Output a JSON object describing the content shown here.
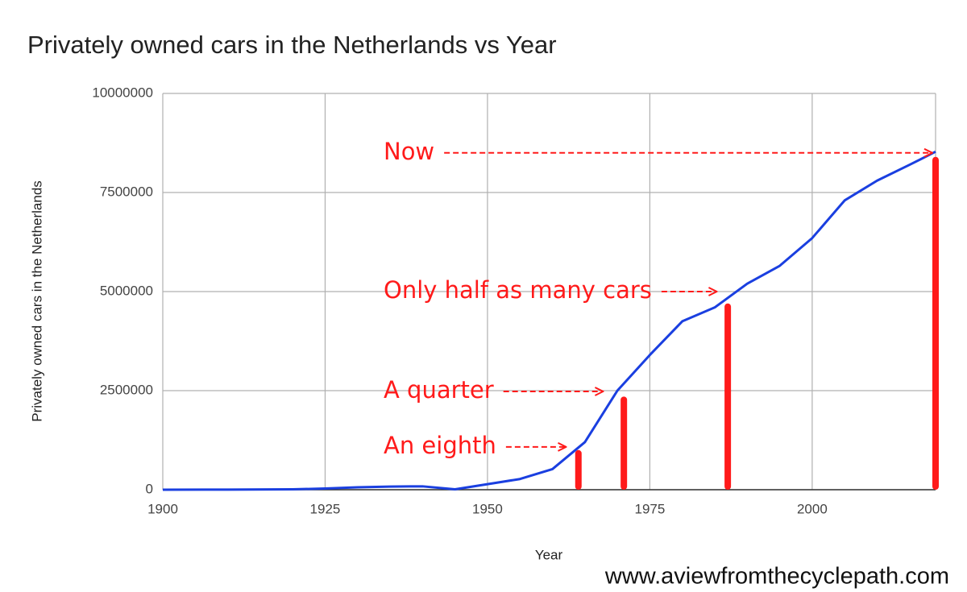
{
  "chart_data": {
    "type": "line",
    "title": "Privately owned cars in the Netherlands vs Year",
    "x_label": "Year",
    "y_label": "Privately owned cars in the Netherlands",
    "watermark": "www.aviewfromthecyclepath.com",
    "x": [
      1900,
      1910,
      1920,
      1925,
      1930,
      1935,
      1940,
      1945,
      1950,
      1955,
      1960,
      1965,
      1970,
      1975,
      1980,
      1985,
      1990,
      1995,
      2000,
      2005,
      2010,
      2015,
      2019
    ],
    "series": [
      {
        "name": "Privately owned cars in the Netherlands",
        "color": "#1a3fe0",
        "values": [
          0,
          2000,
          10000,
          30000,
          60000,
          80000,
          85000,
          10000,
          140000,
          270000,
          520000,
          1200000,
          2500000,
          3400000,
          4250000,
          4600000,
          5200000,
          5650000,
          6350000,
          7300000,
          7800000,
          8200000,
          8530000
        ]
      }
    ],
    "markers": {
      "color": "#ff1a1a",
      "x": [
        1964,
        1971,
        1987,
        2019
      ],
      "values": [
        1000000,
        2350000,
        4700000,
        8400000
      ]
    },
    "annotations": [
      {
        "text": "Now",
        "x": 2019,
        "y": 8500000
      },
      {
        "text": "Only half as many cars",
        "x": 1985.8,
        "y": 5000000
      },
      {
        "text": "A quarter",
        "x": 1968.3,
        "y": 2480000
      },
      {
        "text": "An eighth",
        "x": 1962.6,
        "y": 1080000
      }
    ],
    "xlim": [
      1900,
      2019
    ],
    "ylim": [
      0,
      10000000
    ],
    "xticks": [
      1900,
      1925,
      1950,
      1975,
      2000
    ],
    "yticks": [
      0,
      2500000,
      5000000,
      7500000,
      10000000
    ],
    "grid": true
  }
}
